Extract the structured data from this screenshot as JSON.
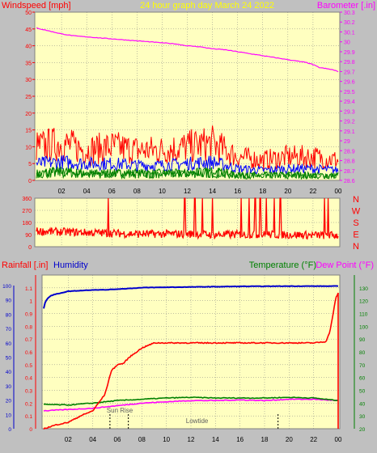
{
  "header": {
    "left_label": "Windspeed [mph]",
    "title": "24 hour graph day   March 24 2022",
    "right_label": "Barometer [.in]"
  },
  "colors": {
    "bg": "#c0c0c0",
    "plot_bg": "#ffffc0",
    "grid": "#808080",
    "wind": "#ff0000",
    "wind_avg": "#0000ff",
    "wind_lull": "#008000",
    "barometer": "#ff00ff",
    "direction": "#ff0000",
    "rainfall": "#ff0000",
    "humidity": "#0000cc",
    "temperature": "#008000",
    "dewpoint": "#ff00ff",
    "title": "#ffff00"
  },
  "chart_data": [
    {
      "type": "line",
      "id": "wind-barometer",
      "title": "24 hour graph day   March 24 2022",
      "xlabel": "",
      "x_ticks": [
        "02",
        "04",
        "06",
        "08",
        "10",
        "12",
        "14",
        "16",
        "18",
        "20",
        "22",
        "00"
      ],
      "left_axis": {
        "label": "Windspeed [mph]",
        "ylim": [
          0,
          50
        ],
        "ticks": [
          0,
          5,
          10,
          15,
          20,
          25,
          30,
          35,
          40,
          45,
          50
        ]
      },
      "right_axis": {
        "label": "Barometer [.in]",
        "ylim": [
          28.6,
          30.3
        ],
        "ticks": [
          "28.6",
          "28.7",
          "28.8",
          "28.9",
          "29",
          "29.1",
          "29.2",
          "29.3",
          "29.4",
          "29.5",
          "29.6",
          "29.7",
          "29.8",
          "29.9",
          "30",
          "30.1",
          "30.2",
          "30.3"
        ]
      },
      "series": [
        {
          "name": "Barometer [.in]",
          "axis": "right",
          "x": [
            0,
            1,
            2,
            3,
            4,
            5,
            6,
            7,
            8,
            9,
            10,
            11,
            12,
            13,
            14,
            15,
            16,
            17,
            18,
            19,
            20,
            21,
            21.5,
            22,
            22.5,
            23,
            23.5,
            24
          ],
          "values": [
            30.14,
            30.11,
            30.08,
            30.06,
            30.05,
            30.04,
            30.03,
            30.02,
            30.01,
            30.0,
            29.99,
            29.98,
            29.96,
            29.95,
            29.93,
            29.92,
            29.9,
            29.88,
            29.86,
            29.84,
            29.82,
            29.8,
            29.79,
            29.77,
            29.74,
            29.73,
            29.72,
            29.7
          ]
        }
      ],
      "wind_profile": {
        "x": [
          0,
          2,
          4,
          6,
          8,
          10,
          12,
          14,
          16,
          18,
          20,
          22,
          24
        ],
        "gust_mph": [
          10,
          11,
          9,
          10,
          9,
          9,
          10,
          11,
          7,
          6,
          7,
          7,
          6
        ],
        "avg_mph": [
          5,
          5.5,
          5,
          5,
          4.5,
          4.5,
          5,
          5.5,
          3.5,
          3,
          3.5,
          3.5,
          3
        ],
        "lull_mph": [
          2,
          2.5,
          2,
          2,
          2,
          2,
          2,
          2.5,
          1.5,
          1.5,
          1.5,
          1.5,
          1.5
        ]
      }
    },
    {
      "type": "line",
      "id": "wind-direction",
      "x_ticks": [
        "02",
        "04",
        "06",
        "08",
        "10",
        "12",
        "14",
        "16",
        "18",
        "20",
        "22",
        "00"
      ],
      "ylim": [
        0,
        360
      ],
      "y_ticks": [
        0,
        90,
        180,
        270,
        360
      ],
      "direction_labels": [
        "N",
        "W",
        "S",
        "E",
        "N"
      ],
      "base_profile": {
        "x": [
          0,
          2,
          4,
          6,
          8,
          10,
          12,
          14,
          16,
          18,
          20,
          22,
          24
        ],
        "values": [
          115,
          110,
          105,
          100,
          95,
          95,
          95,
          90,
          90,
          90,
          90,
          85,
          85
        ]
      },
      "spikes_hour": [
        5.7,
        11.8,
        12.6,
        13.2,
        14.0,
        16.3,
        16.9,
        17.4,
        17.8,
        18.3,
        18.9,
        19.4,
        22.9,
        23.2
      ]
    },
    {
      "type": "line",
      "id": "rain-humidity-temp",
      "x_ticks": [
        "02",
        "04",
        "06",
        "08",
        "10",
        "12",
        "14",
        "16",
        "18",
        "20",
        "22",
        "00"
      ],
      "left_axis": {
        "labels": [
          "Rainfall [.in]",
          "Humidity"
        ],
        "ylim": [
          0,
          1.2
        ],
        "ticks": [
          "0",
          "0.1",
          "0.2",
          "0.3",
          "0.4",
          "0.5",
          "0.6",
          "0.7",
          "0.8",
          "0.9",
          "1",
          "1.1"
        ],
        "humidity_ticks": [
          0,
          10,
          20,
          30,
          40,
          50,
          60,
          70,
          80,
          90,
          100
        ]
      },
      "right_axis": {
        "labels": [
          "Temperature (°F)",
          "Dew Point (°F)"
        ],
        "ylim": [
          20,
          140
        ],
        "ticks": [
          20,
          30,
          40,
          50,
          60,
          70,
          80,
          90,
          100,
          110,
          120,
          130
        ]
      },
      "series": [
        {
          "name": "Humidity",
          "axis": "left-humidity",
          "x": [
            0,
            0.1,
            0.3,
            0.6,
            1,
            1.5,
            2,
            3,
            4,
            5,
            6,
            7,
            8,
            10,
            12,
            14,
            16,
            18,
            20,
            22,
            24
          ],
          "values": [
            84,
            88,
            91,
            93,
            94,
            95,
            96,
            96.5,
            97,
            97,
            97.5,
            98,
            98.5,
            98.8,
            99,
            99.2,
            99.4,
            99.5,
            99.6,
            99.6,
            99.6
          ]
        },
        {
          "name": "Rainfall [.in]",
          "axis": "left",
          "x": [
            0,
            1,
            2,
            3,
            4,
            5,
            5.5,
            6,
            6.5,
            7,
            8,
            9,
            10,
            12,
            14,
            16,
            18,
            20,
            22,
            23,
            23.3,
            23.6,
            23.8,
            24
          ],
          "values": [
            0.0,
            0.03,
            0.05,
            0.1,
            0.14,
            0.27,
            0.45,
            0.5,
            0.51,
            0.56,
            0.63,
            0.67,
            0.67,
            0.67,
            0.67,
            0.67,
            0.67,
            0.67,
            0.67,
            0.68,
            0.75,
            0.9,
            1.02,
            1.06
          ]
        },
        {
          "name": "Temperature (°F)",
          "axis": "right",
          "x": [
            0,
            2,
            4,
            6,
            8,
            10,
            12,
            14,
            16,
            18,
            20,
            22,
            24
          ],
          "values": [
            39,
            38.5,
            40,
            42,
            43,
            44,
            44.5,
            44,
            44,
            44,
            44.5,
            44,
            42
          ]
        },
        {
          "name": "Dew Point (°F)",
          "axis": "right",
          "x": [
            0,
            2,
            4,
            6,
            8,
            10,
            12,
            14,
            16,
            18,
            20,
            22,
            24
          ],
          "values": [
            34,
            35,
            36,
            38,
            40,
            41,
            42,
            42,
            42.5,
            42,
            43,
            43,
            42
          ]
        }
      ],
      "annotations": [
        {
          "text": "Sun Rise",
          "x_hour": 6.2
        },
        {
          "text": "Lowtide",
          "x_hour": 12.5
        }
      ],
      "markers_hour": [
        5.4,
        6.9,
        19.1
      ]
    }
  ]
}
